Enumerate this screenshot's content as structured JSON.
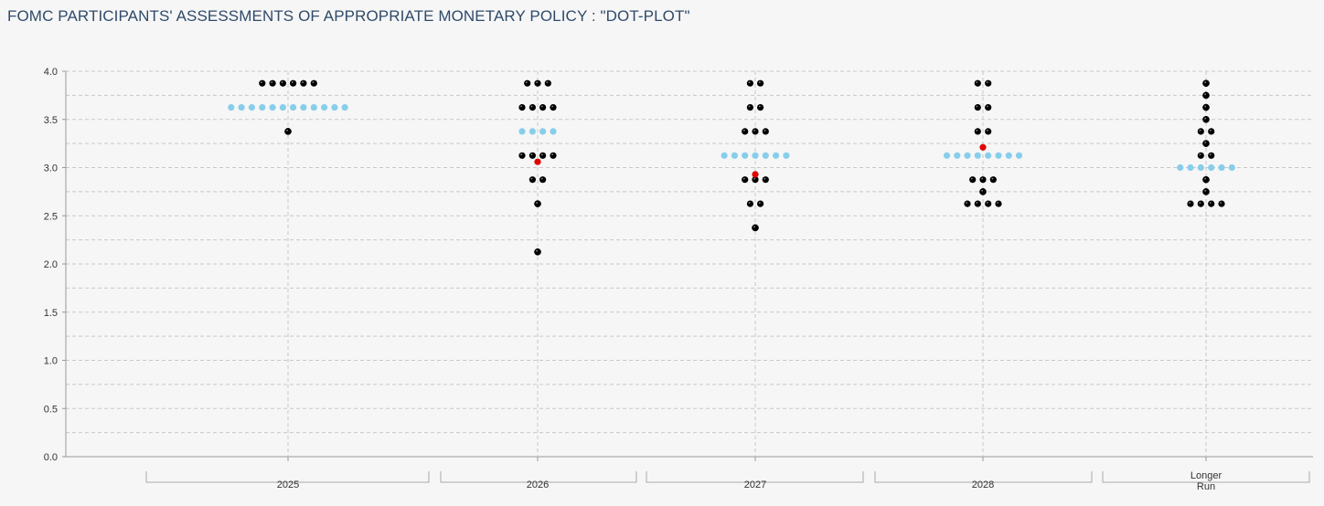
{
  "title": "FOMC PARTICIPANTS' ASSESSMENTS OF APPROPRIATE MONETARY POLICY : \"DOT-PLOT\"",
  "colors": {
    "participant_dot": "#000000",
    "median_dot": "#87ceeb",
    "mean_dot": "#e00000",
    "background": "#f6f6f6",
    "grid": "#c8c8c8",
    "title": "#2f4a6b"
  },
  "chart_data": {
    "type": "scatter",
    "title": "FOMC PARTICIPANTS' ASSESSMENTS OF APPROPRIATE MONETARY POLICY : \"DOT-PLOT\"",
    "xlabel": "",
    "ylabel": "",
    "ylim": [
      0,
      4.0
    ],
    "yticks": [
      "0.0",
      "0.5",
      "1.0",
      "1.5",
      "2.0",
      "2.5",
      "3.0",
      "3.5",
      "4.0"
    ],
    "grid": true,
    "categories": [
      {
        "label": "2025",
        "label_lines": [
          "2025"
        ]
      },
      {
        "label": "2026",
        "label_lines": [
          "2026"
        ]
      },
      {
        "label": "2027",
        "label_lines": [
          "2027"
        ]
      },
      {
        "label": "2028",
        "label_lines": [
          "2028"
        ]
      },
      {
        "label": "Longer Run",
        "label_lines": [
          "Longer",
          "Run"
        ]
      }
    ],
    "series": [
      {
        "kind": "participants",
        "points": [
          {
            "x": "2025",
            "y": 3.875,
            "count": 6
          },
          {
            "x": "2025",
            "y": 3.375,
            "count": 1
          },
          {
            "x": "2026",
            "y": 3.875,
            "count": 3
          },
          {
            "x": "2026",
            "y": 3.625,
            "count": 4
          },
          {
            "x": "2026",
            "y": 3.125,
            "count": 4
          },
          {
            "x": "2026",
            "y": 2.875,
            "count": 2
          },
          {
            "x": "2026",
            "y": 2.625,
            "count": 1
          },
          {
            "x": "2026",
            "y": 2.125,
            "count": 1
          },
          {
            "x": "2027",
            "y": 3.875,
            "count": 2
          },
          {
            "x": "2027",
            "y": 3.625,
            "count": 2
          },
          {
            "x": "2027",
            "y": 3.375,
            "count": 3
          },
          {
            "x": "2027",
            "y": 2.875,
            "count": 3
          },
          {
            "x": "2027",
            "y": 2.625,
            "count": 2
          },
          {
            "x": "2027",
            "y": 2.375,
            "count": 1
          },
          {
            "x": "2028",
            "y": 3.875,
            "count": 2
          },
          {
            "x": "2028",
            "y": 3.625,
            "count": 2
          },
          {
            "x": "2028",
            "y": 3.375,
            "count": 2
          },
          {
            "x": "2028",
            "y": 2.875,
            "count": 3
          },
          {
            "x": "2028",
            "y": 2.75,
            "count": 1
          },
          {
            "x": "2028",
            "y": 2.625,
            "count": 4
          },
          {
            "x": "Longer Run",
            "y": 3.875,
            "count": 1
          },
          {
            "x": "Longer Run",
            "y": 3.75,
            "count": 1
          },
          {
            "x": "Longer Run",
            "y": 3.625,
            "count": 1
          },
          {
            "x": "Longer Run",
            "y": 3.5,
            "count": 1
          },
          {
            "x": "Longer Run",
            "y": 3.375,
            "count": 2
          },
          {
            "x": "Longer Run",
            "y": 3.25,
            "count": 1
          },
          {
            "x": "Longer Run",
            "y": 3.125,
            "count": 2
          },
          {
            "x": "Longer Run",
            "y": 2.875,
            "count": 1
          },
          {
            "x": "Longer Run",
            "y": 2.75,
            "count": 1
          },
          {
            "x": "Longer Run",
            "y": 2.625,
            "count": 4
          }
        ]
      },
      {
        "kind": "median",
        "points": [
          {
            "x": "2025",
            "y": 3.625,
            "count": 12
          },
          {
            "x": "2026",
            "y": 3.375,
            "count": 4
          },
          {
            "x": "2027",
            "y": 3.125,
            "count": 7
          },
          {
            "x": "2028",
            "y": 3.125,
            "count": 8
          },
          {
            "x": "Longer Run",
            "y": 3.0,
            "count": 6
          }
        ]
      },
      {
        "kind": "mean",
        "points": [
          {
            "x": "2026",
            "y": 3.06
          },
          {
            "x": "2027",
            "y": 2.93
          },
          {
            "x": "2028",
            "y": 3.21
          }
        ]
      }
    ]
  }
}
